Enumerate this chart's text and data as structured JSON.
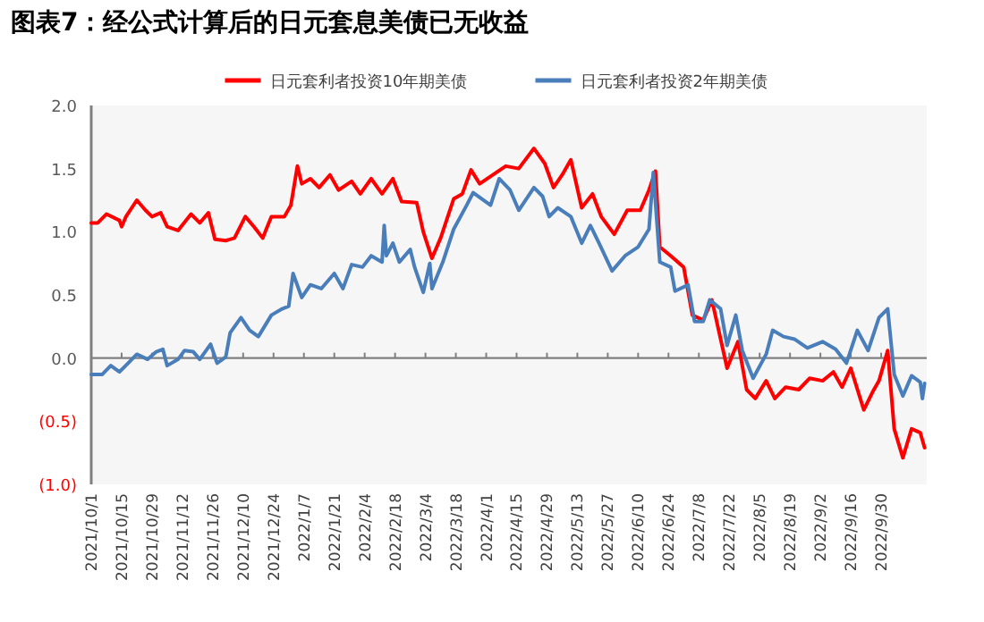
{
  "chart_data": {
    "type": "line",
    "title": "图表7：经公式计算后的日元套息美债已无收益",
    "legend": "top",
    "line_style": "solid",
    "marker": "none",
    "xlim": [
      "2021-10-01",
      "2022-10-21"
    ],
    "xticks": [
      {
        "value": "2021-10-01",
        "label": "2021/10/1"
      },
      {
        "value": "2021-10-15",
        "label": "2021/10/15"
      },
      {
        "value": "2021-10-29",
        "label": "2021/10/29"
      },
      {
        "value": "2021-11-12",
        "label": "2021/11/12"
      },
      {
        "value": "2021-11-26",
        "label": "2021/11/26"
      },
      {
        "value": "2021-12-10",
        "label": "2021/12/10"
      },
      {
        "value": "2021-12-24",
        "label": "2021/12/24"
      },
      {
        "value": "2022-01-07",
        "label": "2022/1/7"
      },
      {
        "value": "2022-01-21",
        "label": "2022/1/21"
      },
      {
        "value": "2022-02-04",
        "label": "2022/2/4"
      },
      {
        "value": "2022-02-18",
        "label": "2022/2/18"
      },
      {
        "value": "2022-03-04",
        "label": "2022/3/4"
      },
      {
        "value": "2022-03-18",
        "label": "2022/3/18"
      },
      {
        "value": "2022-04-01",
        "label": "2022/4/1"
      },
      {
        "value": "2022-04-15",
        "label": "2022/4/15"
      },
      {
        "value": "2022-04-29",
        "label": "2022/4/29"
      },
      {
        "value": "2022-05-13",
        "label": "2022/5/13"
      },
      {
        "value": "2022-05-27",
        "label": "2022/5/27"
      },
      {
        "value": "2022-06-10",
        "label": "2022/6/10"
      },
      {
        "value": "2022-06-24",
        "label": "2022/6/24"
      },
      {
        "value": "2022-07-08",
        "label": "2022/7/8"
      },
      {
        "value": "2022-07-22",
        "label": "2022/7/22"
      },
      {
        "value": "2022-08-05",
        "label": "2022/8/5"
      },
      {
        "value": "2022-08-19",
        "label": "2022/8/19"
      },
      {
        "value": "2022-09-02",
        "label": "2022/9/2"
      },
      {
        "value": "2022-09-16",
        "label": "2022/9/16"
      },
      {
        "value": "2022-09-30",
        "label": "2022/9/30"
      }
    ],
    "ylim": [
      -1.0,
      2.0
    ],
    "yticks": [
      {
        "value": -1.0,
        "label": "(1.0)"
      },
      {
        "value": -0.5,
        "label": "(0.5)"
      },
      {
        "value": 0,
        "label": "0.0"
      },
      {
        "value": 0.5,
        "label": "0.5"
      },
      {
        "value": 1.0,
        "label": "1.0"
      },
      {
        "value": 1.5,
        "label": "1.5"
      },
      {
        "value": 2.0,
        "label": "2.0"
      }
    ],
    "series": [
      {
        "name": "日元套利者投资10年期美债",
        "color": "#ff0000",
        "x": [
          "2021-10-01",
          "2021-10-04",
          "2021-10-08",
          "2021-10-14",
          "2021-10-15",
          "2021-10-17",
          "2021-10-22",
          "2021-10-26",
          "2021-10-29",
          "2021-11-02",
          "2021-11-05",
          "2021-11-10",
          "2021-11-16",
          "2021-11-20",
          "2021-11-24",
          "2021-11-27",
          "2021-12-02",
          "2021-12-06",
          "2021-12-11",
          "2021-12-15",
          "2021-12-19",
          "2021-12-23",
          "2021-12-29",
          "2022-01-01",
          "2022-01-04",
          "2022-01-06",
          "2022-01-10",
          "2022-01-14",
          "2022-01-19",
          "2022-01-23",
          "2022-01-29",
          "2022-02-02",
          "2022-02-07",
          "2022-02-12",
          "2022-02-17",
          "2022-02-21",
          "2022-02-28",
          "2022-03-03",
          "2022-03-07",
          "2022-03-11",
          "2022-03-17",
          "2022-03-21",
          "2022-03-25",
          "2022-03-29",
          "2022-04-10",
          "2022-04-16",
          "2022-04-23",
          "2022-04-28",
          "2022-05-02",
          "2022-05-06",
          "2022-05-10",
          "2022-05-15",
          "2022-05-20",
          "2022-05-24",
          "2022-05-30",
          "2022-06-05",
          "2022-06-11",
          "2022-06-15",
          "2022-06-18",
          "2022-06-20",
          "2022-06-25",
          "2022-07-01",
          "2022-07-05",
          "2022-07-10",
          "2022-07-14",
          "2022-07-21",
          "2022-07-26",
          "2022-07-30",
          "2022-08-03",
          "2022-08-08",
          "2022-08-12",
          "2022-08-17",
          "2022-08-23",
          "2022-08-28",
          "2022-09-03",
          "2022-09-08",
          "2022-09-12",
          "2022-09-16",
          "2022-09-22",
          "2022-09-26",
          "2022-09-29",
          "2022-10-03",
          "2022-10-06",
          "2022-10-10",
          "2022-10-14",
          "2022-10-18",
          "2022-10-20"
        ],
        "values": [
          1.07,
          1.07,
          1.14,
          1.09,
          1.04,
          1.12,
          1.25,
          1.17,
          1.12,
          1.15,
          1.04,
          1.01,
          1.14,
          1.07,
          1.15,
          0.94,
          0.93,
          0.95,
          1.12,
          1.04,
          0.95,
          1.12,
          1.12,
          1.21,
          1.52,
          1.38,
          1.42,
          1.35,
          1.45,
          1.33,
          1.4,
          1.3,
          1.42,
          1.3,
          1.42,
          1.24,
          1.23,
          1.0,
          0.79,
          0.95,
          1.26,
          1.3,
          1.49,
          1.38,
          1.52,
          1.5,
          1.66,
          1.54,
          1.35,
          1.45,
          1.57,
          1.19,
          1.3,
          1.12,
          0.98,
          1.17,
          1.17,
          1.33,
          1.48,
          0.88,
          0.81,
          0.72,
          0.34,
          0.3,
          0.46,
          -0.08,
          0.13,
          -0.25,
          -0.32,
          -0.18,
          -0.32,
          -0.23,
          -0.25,
          -0.16,
          -0.18,
          -0.11,
          -0.23,
          -0.08,
          -0.41,
          -0.27,
          -0.18,
          0.06,
          -0.56,
          -0.79,
          -0.56,
          -0.59,
          -0.71
        ]
      },
      {
        "name": "日元套利者投资2年期美债",
        "color": "#4a7ebb",
        "x": [
          "2021-10-01",
          "2021-10-06",
          "2021-10-10",
          "2021-10-14",
          "2021-10-18",
          "2021-10-22",
          "2021-10-27",
          "2021-10-31",
          "2021-11-03",
          "2021-11-05",
          "2021-11-10",
          "2021-11-13",
          "2021-11-17",
          "2021-11-20",
          "2021-11-25",
          "2021-11-28",
          "2021-12-02",
          "2021-12-04",
          "2021-12-09",
          "2021-12-13",
          "2021-12-17",
          "2021-12-23",
          "2021-12-28",
          "2021-12-31",
          "2022-01-02",
          "2022-01-06",
          "2022-01-10",
          "2022-01-15",
          "2022-01-21",
          "2022-01-25",
          "2022-01-29",
          "2022-02-03",
          "2022-02-07",
          "2022-02-12",
          "2022-02-13",
          "2022-02-14",
          "2022-02-17",
          "2022-02-20",
          "2022-02-25",
          "2022-02-27",
          "2022-03-03",
          "2022-03-06",
          "2022-03-07",
          "2022-03-12",
          "2022-03-17",
          "2022-03-23",
          "2022-03-26",
          "2022-03-30",
          "2022-04-03",
          "2022-04-07",
          "2022-04-12",
          "2022-04-16",
          "2022-04-23",
          "2022-04-27",
          "2022-04-30",
          "2022-05-04",
          "2022-05-10",
          "2022-05-15",
          "2022-05-19",
          "2022-05-23",
          "2022-05-29",
          "2022-06-04",
          "2022-06-10",
          "2022-06-15",
          "2022-06-17",
          "2022-06-20",
          "2022-06-25",
          "2022-06-27",
          "2022-07-03",
          "2022-07-06",
          "2022-07-10",
          "2022-07-13",
          "2022-07-18",
          "2022-07-21",
          "2022-07-25",
          "2022-07-28",
          "2022-08-02",
          "2022-08-08",
          "2022-08-11",
          "2022-08-16",
          "2022-08-21",
          "2022-08-27",
          "2022-09-03",
          "2022-09-09",
          "2022-09-14",
          "2022-09-19",
          "2022-09-24",
          "2022-09-29",
          "2022-10-03",
          "2022-10-06",
          "2022-10-10",
          "2022-10-14",
          "2022-10-18",
          "2022-10-19",
          "2022-10-20"
        ],
        "values": [
          -0.13,
          -0.13,
          -0.06,
          -0.11,
          -0.04,
          0.03,
          -0.01,
          0.05,
          0.07,
          -0.06,
          -0.01,
          0.06,
          0.05,
          -0.01,
          0.11,
          -0.04,
          0.01,
          0.2,
          0.32,
          0.22,
          0.17,
          0.34,
          0.39,
          0.41,
          0.67,
          0.48,
          0.58,
          0.55,
          0.67,
          0.55,
          0.74,
          0.72,
          0.81,
          0.76,
          1.05,
          0.81,
          0.91,
          0.76,
          0.86,
          0.72,
          0.52,
          0.75,
          0.55,
          0.76,
          1.02,
          1.21,
          1.31,
          1.26,
          1.21,
          1.42,
          1.33,
          1.17,
          1.35,
          1.28,
          1.12,
          1.19,
          1.12,
          0.91,
          1.05,
          0.91,
          0.69,
          0.81,
          0.88,
          1.02,
          1.47,
          0.76,
          0.72,
          0.53,
          0.58,
          0.29,
          0.29,
          0.46,
          0.39,
          0.1,
          0.34,
          0.06,
          -0.16,
          0.03,
          0.22,
          0.17,
          0.15,
          0.08,
          0.13,
          0.07,
          -0.04,
          0.22,
          0.06,
          0.32,
          0.39,
          -0.13,
          -0.3,
          -0.14,
          -0.19,
          -0.32,
          -0.2
        ]
      }
    ]
  }
}
